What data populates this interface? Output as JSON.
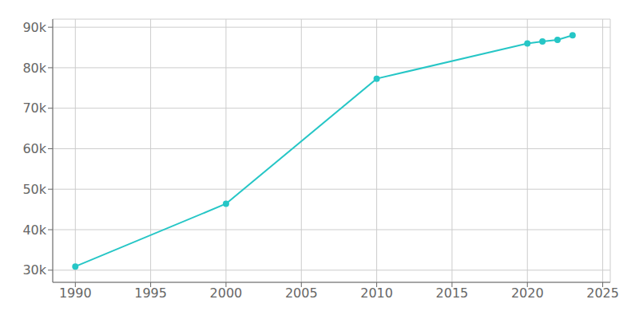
{
  "chart_data": {
    "type": "line",
    "x": [
      1990,
      2000,
      2010,
      2020,
      2021,
      2022,
      2023
    ],
    "values": [
      30900,
      46400,
      77300,
      86000,
      86500,
      86900,
      88000
    ],
    "color": "#26c6c6",
    "marker": "circle",
    "xlim": [
      1988.5,
      2025.5
    ],
    "ylim": [
      27000,
      92000
    ],
    "xticks": [
      1990,
      1995,
      2000,
      2005,
      2010,
      2015,
      2020,
      2025
    ],
    "yticks": [
      {
        "value": 30000,
        "label": "30k"
      },
      {
        "value": 40000,
        "label": "40k"
      },
      {
        "value": 50000,
        "label": "50k"
      },
      {
        "value": 60000,
        "label": "60k"
      },
      {
        "value": 70000,
        "label": "70k"
      },
      {
        "value": 80000,
        "label": "80k"
      },
      {
        "value": 90000,
        "label": "90k"
      }
    ],
    "grid": true
  }
}
